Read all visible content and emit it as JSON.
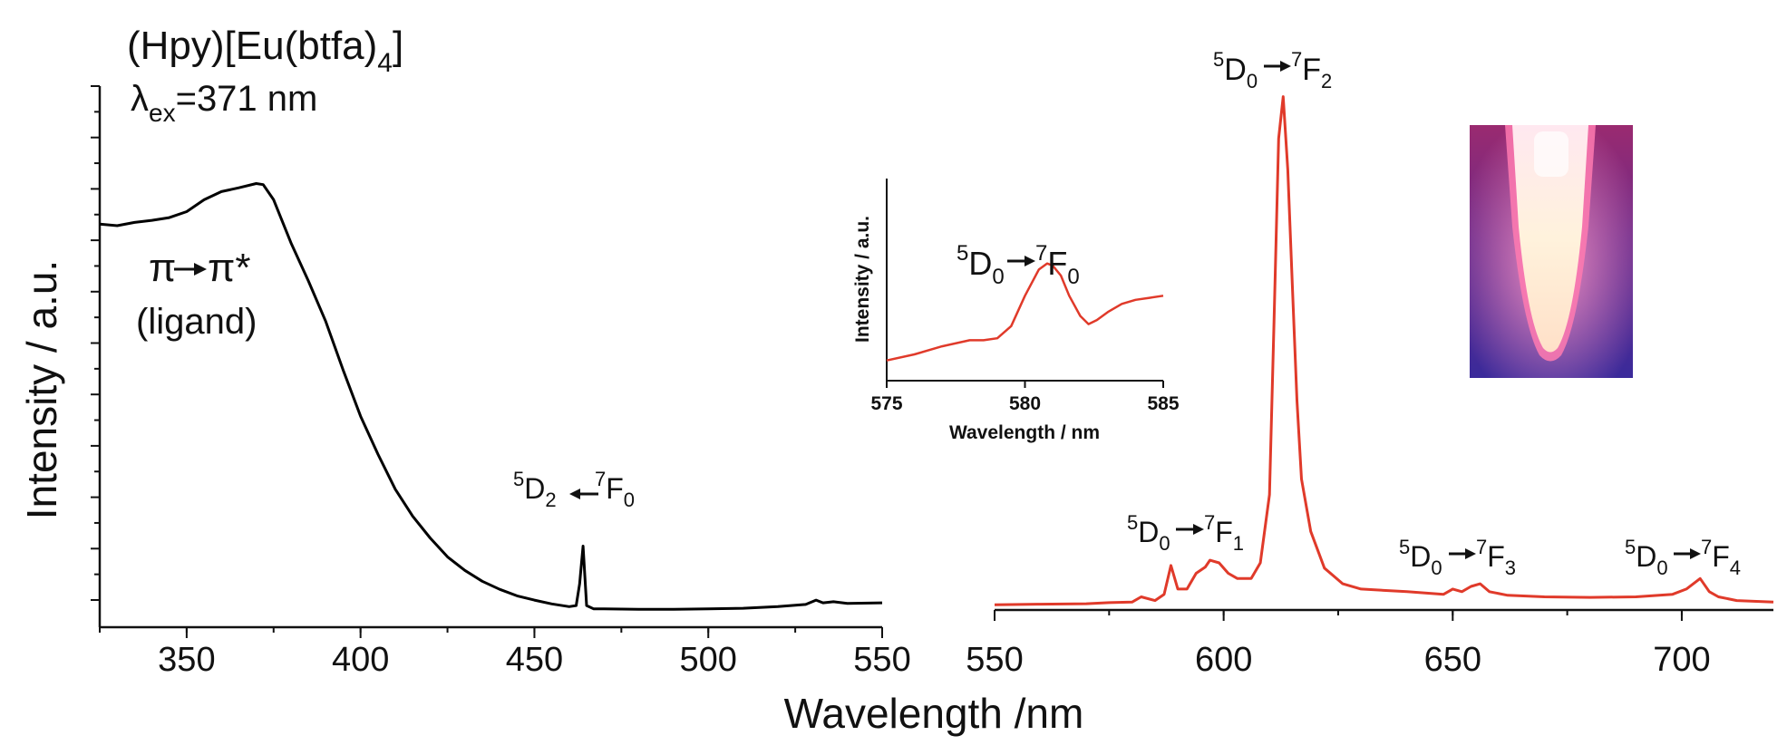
{
  "chart_data": [
    {
      "type": "line",
      "name": "excitation-spectrum",
      "title": "(Hpy)[Eu(btfa)",
      "title_subscript": "4",
      "title_close": "]",
      "lambda_symbol": "λ",
      "lambda_sub": "ex",
      "lambda_value": "=371 nm",
      "ylabel": "Intensity / a.u.",
      "xlim": [
        325,
        550
      ],
      "ylim": [
        0,
        1.0
      ],
      "xticks": [
        350,
        400,
        450,
        500,
        550
      ],
      "color": "#000000",
      "x": [
        325,
        330,
        335,
        340,
        345,
        350,
        355,
        360,
        365,
        370,
        372,
        375,
        380,
        385,
        390,
        395,
        400,
        405,
        410,
        415,
        420,
        425,
        430,
        435,
        440,
        445,
        450,
        455,
        460,
        462,
        463,
        464,
        465,
        467,
        470,
        480,
        490,
        500,
        510,
        520,
        528,
        531,
        533,
        536,
        540,
        550
      ],
      "y": [
        0.745,
        0.742,
        0.748,
        0.752,
        0.757,
        0.768,
        0.79,
        0.805,
        0.812,
        0.82,
        0.818,
        0.79,
        0.71,
        0.64,
        0.565,
        0.475,
        0.39,
        0.32,
        0.255,
        0.205,
        0.165,
        0.13,
        0.105,
        0.085,
        0.07,
        0.058,
        0.05,
        0.043,
        0.038,
        0.04,
        0.08,
        0.15,
        0.04,
        0.034,
        0.034,
        0.033,
        0.033,
        0.034,
        0.035,
        0.038,
        0.042,
        0.05,
        0.045,
        0.047,
        0.044,
        0.045
      ],
      "annotations": [
        {
          "pre": "π",
          "post": "π*",
          "line2": "(ligand)"
        },
        {
          "sup1": "5",
          "base1": "D",
          "sub1": "2",
          "sup2": "7",
          "base2": "F",
          "sub2": "0"
        }
      ]
    },
    {
      "type": "line",
      "name": "emission-spectrum",
      "xlim": [
        550,
        720
      ],
      "ylim": [
        0,
        1.0
      ],
      "xticks": [
        550,
        600,
        650,
        700
      ],
      "color": "#e03a2a",
      "x": [
        550,
        560,
        570,
        575,
        580,
        582,
        585,
        587,
        588.5,
        590,
        592,
        594,
        596,
        597,
        599,
        601,
        603,
        606,
        608,
        610,
        611,
        612,
        613,
        614,
        615,
        616,
        617,
        619,
        622,
        626,
        630,
        640,
        648,
        650,
        652,
        654,
        656,
        658,
        662,
        670,
        680,
        690,
        698,
        701,
        704,
        706,
        708,
        712,
        720
      ],
      "y": [
        0.01,
        0.011,
        0.012,
        0.014,
        0.015,
        0.025,
        0.018,
        0.03,
        0.085,
        0.04,
        0.04,
        0.07,
        0.082,
        0.095,
        0.09,
        0.07,
        0.06,
        0.06,
        0.09,
        0.22,
        0.55,
        0.9,
        0.98,
        0.84,
        0.62,
        0.4,
        0.25,
        0.15,
        0.08,
        0.05,
        0.04,
        0.035,
        0.03,
        0.04,
        0.035,
        0.045,
        0.05,
        0.035,
        0.028,
        0.025,
        0.024,
        0.025,
        0.03,
        0.04,
        0.06,
        0.035,
        0.025,
        0.018,
        0.015
      ],
      "annotations": [
        {
          "sup1": "5",
          "base1": "D",
          "sub1": "0",
          "sup2": "7",
          "base2": "F",
          "sub2": "1"
        },
        {
          "sup1": "5",
          "base1": "D",
          "sub1": "0",
          "sup2": "7",
          "base2": "F",
          "sub2": "2"
        },
        {
          "sup1": "5",
          "base1": "D",
          "sub1": "0",
          "sup2": "7",
          "base2": "F",
          "sub2": "3"
        },
        {
          "sup1": "5",
          "base1": "D",
          "sub1": "0",
          "sup2": "7",
          "base2": "F",
          "sub2": "4"
        }
      ]
    },
    {
      "type": "line",
      "name": "inset-spectrum",
      "xlabel": "Wavelength / nm",
      "ylabel": "Intensity / a.u.",
      "xlim": [
        575,
        585
      ],
      "ylim": [
        0,
        1.0
      ],
      "xticks": [
        575,
        580,
        585
      ],
      "color": "#e03a2a",
      "x": [
        575,
        576,
        577,
        578,
        578.5,
        579,
        579.5,
        580,
        580.5,
        580.8,
        581,
        581.3,
        581.6,
        582,
        582.3,
        582.6,
        583,
        583.5,
        584,
        584.5,
        585
      ],
      "y": [
        0.1,
        0.13,
        0.17,
        0.2,
        0.2,
        0.21,
        0.27,
        0.42,
        0.55,
        0.58,
        0.57,
        0.52,
        0.42,
        0.32,
        0.28,
        0.3,
        0.34,
        0.38,
        0.4,
        0.41,
        0.42
      ],
      "annotation": {
        "sup1": "5",
        "base1": "D",
        "sub1": "0",
        "sup2": "7",
        "base2": "F",
        "sub2": "0"
      }
    }
  ],
  "shared_xlabel": "Wavelength /nm",
  "photo": {
    "description_icon": "sample-vial-photo",
    "colors": [
      "#5a2a9a",
      "#d94a7a",
      "#fff4dc"
    ]
  }
}
